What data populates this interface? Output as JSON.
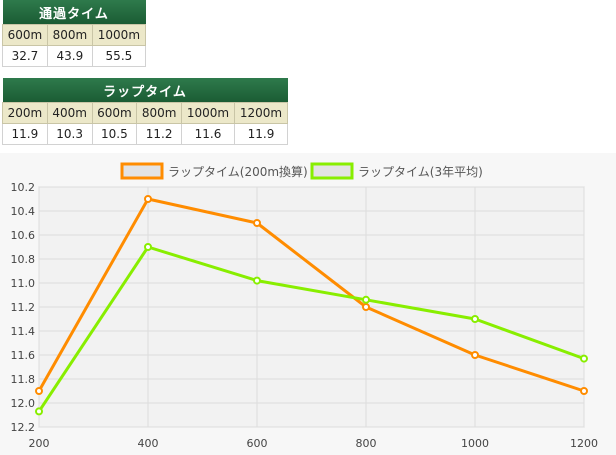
{
  "passing_table": {
    "title": "通過タイム",
    "headers": [
      "600m",
      "800m",
      "1000m"
    ],
    "values": [
      "32.7",
      "43.9",
      "55.5"
    ]
  },
  "lap_table": {
    "title": "ラップタイム",
    "headers": [
      "200m",
      "400m",
      "600m",
      "800m",
      "1000m",
      "1200m"
    ],
    "values": [
      "11.9",
      "10.3",
      "10.5",
      "11.2",
      "11.6",
      "11.9"
    ]
  },
  "chart_data": {
    "type": "line",
    "x": [
      200,
      400,
      600,
      800,
      1000,
      1200
    ],
    "x_ticks": [
      "200",
      "400",
      "600",
      "800",
      "1000",
      "1200"
    ],
    "y_ticks": [
      "10.2",
      "10.4",
      "10.6",
      "10.8",
      "11.0",
      "11.2",
      "11.4",
      "11.6",
      "11.8",
      "12.0",
      "12.2"
    ],
    "ylim": [
      10.2,
      12.2
    ],
    "y_reversed": true,
    "grid": true,
    "legend_position": "top",
    "series": [
      {
        "name": "ラップタイム(200m換算)",
        "color": "#ff8c00",
        "values": [
          11.9,
          10.3,
          10.5,
          11.2,
          11.6,
          11.9
        ]
      },
      {
        "name": "ラップタイム(3年平均)",
        "color": "#88ee00",
        "values": [
          12.07,
          10.7,
          10.98,
          11.14,
          11.3,
          11.63
        ]
      }
    ]
  }
}
